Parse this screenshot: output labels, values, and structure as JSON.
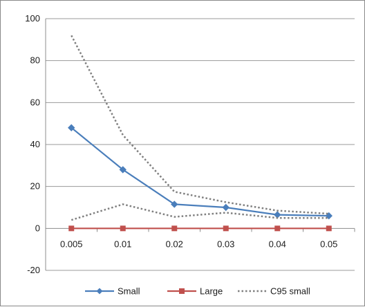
{
  "chart_data": {
    "type": "line",
    "title": "",
    "xlabel": "",
    "ylabel": "",
    "categories": [
      "0.005",
      "0.01",
      "0.02",
      "0.03",
      "0.04",
      "0.05"
    ],
    "ylim": [
      -20,
      100
    ],
    "yticks": [
      "-20",
      "0",
      "20",
      "40",
      "60",
      "80",
      "100"
    ],
    "grid": "horizontal",
    "legend_position": "bottom",
    "series": [
      {
        "name": "Small",
        "color": "#4a7ebb",
        "marker": "diamond",
        "style": "solid",
        "values": [
          48,
          28,
          11.5,
          10,
          6.5,
          6
        ]
      },
      {
        "name": "Large",
        "color": "#c0504d",
        "marker": "square",
        "style": "solid",
        "values": [
          0,
          0,
          0,
          0,
          0,
          0
        ]
      },
      {
        "name": "C95 small",
        "color": "#7f7f7f",
        "marker": "none",
        "style": "dotted",
        "values": [
          92,
          44.5,
          17.5,
          12.5,
          8.5,
          7
        ]
      },
      {
        "name": "",
        "color": "#7f7f7f",
        "marker": "none",
        "style": "dotted",
        "values": [
          4,
          11.5,
          5.5,
          7.5,
          5,
          5
        ]
      }
    ]
  }
}
